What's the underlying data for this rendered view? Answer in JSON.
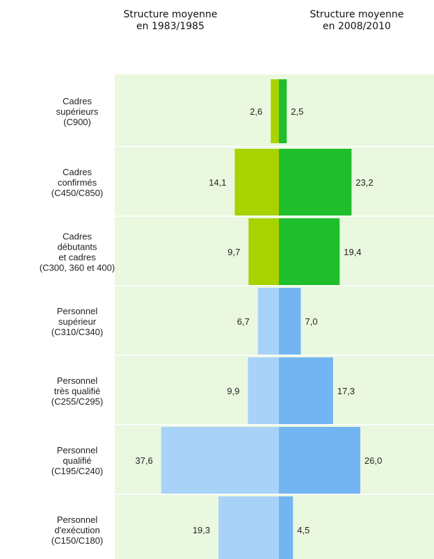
{
  "chart_data": {
    "type": "bar",
    "title": "",
    "series": [
      {
        "name": "Structure moyenne en 1983/1985",
        "values": [
          2.6,
          14.1,
          9.7,
          6.7,
          9.9,
          37.6,
          19.3
        ],
        "labels": [
          "2,6",
          "14,1",
          "9,7",
          "6,7",
          "9,9",
          "37,6",
          "19,3"
        ]
      },
      {
        "name": "Structure moyenne en 2008/2010",
        "values": [
          2.5,
          23.2,
          19.4,
          7.0,
          17.3,
          26.0,
          4.5
        ],
        "labels": [
          "2,5",
          "23,2",
          "19,4",
          "7,0",
          "17,3",
          "26,0",
          "4,5"
        ]
      }
    ],
    "categories": [
      [
        "Cadres",
        "supérieurs",
        "(C900)"
      ],
      [
        "Cadres",
        "confirmés",
        "(C450/C850)"
      ],
      [
        "Cadres",
        "débutants",
        "et cadres",
        "(C300, 360 et 400)"
      ],
      [
        "Personnel",
        "supérieur",
        "(C310/C340)"
      ],
      [
        "Personnel",
        "très qualifié",
        "(C255/C295)"
      ],
      [
        "Personnel",
        "qualifié",
        "(C195/C240)"
      ],
      [
        "Personnel",
        "d'exécution",
        "(C150/C180)"
      ]
    ],
    "group_of_category": [
      "cadres",
      "cadres",
      "cadres",
      "personnel",
      "personnel",
      "personnel",
      "personnel"
    ],
    "colors": {
      "background": "#e9f8df",
      "separator": "#ffffff",
      "cadres_left": "#a8d200",
      "cadres_right": "#1fbe2c",
      "personnel_left": "#a9d2f8",
      "personnel_right": "#72b5f2"
    }
  },
  "headers": {
    "left": [
      "Structure moyenne",
      "en 1983/1985"
    ],
    "right": [
      "Structure moyenne",
      "en 2008/2010"
    ]
  }
}
